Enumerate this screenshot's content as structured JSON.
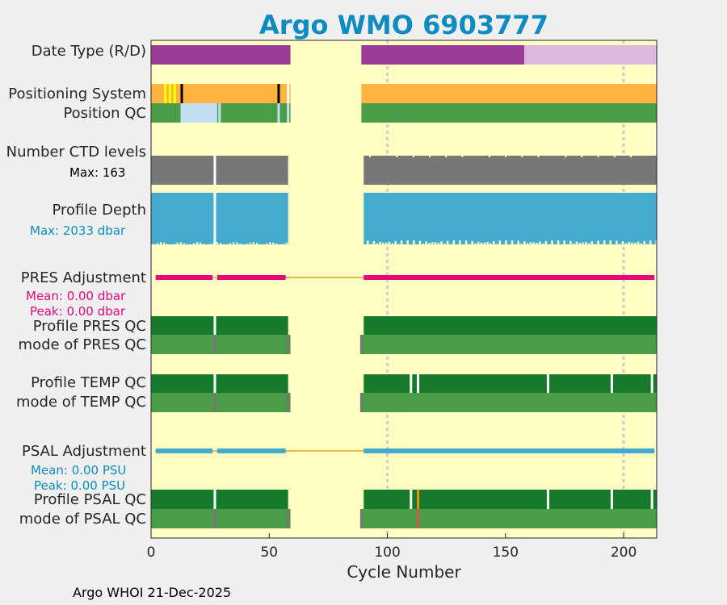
{
  "chart_data": {
    "type": "status-timeline",
    "title": "Argo WMO 6903777",
    "xlabel": "Cycle Number",
    "xlim": [
      0,
      214
    ],
    "xticks": [
      0,
      50,
      100,
      150,
      200
    ],
    "gridlines": [
      100,
      200
    ],
    "missing_cycles": [
      59,
      89
    ],
    "colors": {
      "background": "#ffffc4",
      "plot_border": "#000000",
      "purple_R": "#9b3d96",
      "pink_D": "#dcb8dc",
      "orange": "#ffb440",
      "yellow": "#ffff00",
      "black": "#000000",
      "good_qc": "#4a9d46",
      "light_blue": "#c0e0f0",
      "gray": "#777777",
      "depth_blue": "#44aace",
      "pres_line": "#e8077a",
      "psal_line": "#44aace",
      "thin_line": "#f3bb44",
      "profile_qc_green": "#167a2b",
      "gap_light": "#cccccc",
      "red": "#d9534f",
      "dark_orange": "#e3930c",
      "white": "#ffffff",
      "grid": "#cccccc"
    },
    "rows": [
      {
        "label": "Date Type (R/D)",
        "segments": [
          [
            0,
            59,
            "purple_R"
          ],
          [
            89,
            158,
            "purple_R"
          ],
          [
            158,
            214,
            "pink_D"
          ]
        ]
      },
      {
        "label": "Positioning System",
        "segments": [
          [
            0,
            59,
            "orange"
          ],
          [
            89,
            214,
            "orange"
          ]
        ],
        "marks": [
          [
            6,
            "yellow"
          ],
          [
            8,
            "yellow"
          ],
          [
            10,
            "yellow"
          ],
          [
            13,
            "black"
          ],
          [
            54,
            "black"
          ],
          [
            58,
            "white"
          ]
        ]
      },
      {
        "label": "Position QC",
        "segments": [
          [
            0,
            59,
            "good_qc"
          ],
          [
            89,
            214,
            "good_qc"
          ],
          [
            13,
            28,
            "light_blue"
          ]
        ],
        "marks": [
          [
            13,
            "light_blue"
          ],
          [
            29,
            "light_blue"
          ],
          [
            54,
            "light_blue"
          ],
          [
            58,
            "light_blue"
          ]
        ]
      },
      {
        "label": "Number CTD levels",
        "sublabel": "Max: 163",
        "segments": [
          [
            0,
            58,
            "gray"
          ],
          [
            90,
            214,
            "gray"
          ]
        ],
        "marks": [
          [
            27,
            "white"
          ]
        ]
      },
      {
        "label": "Profile Depth",
        "sublabel": "Max: 2033 dbar",
        "segments": [
          [
            0,
            58,
            "depth_blue"
          ],
          [
            90,
            214,
            "depth_blue"
          ]
        ],
        "marks": [
          [
            27,
            "white"
          ]
        ]
      },
      {
        "label": "PRES Adjustment",
        "sublabel": "Mean: 0.00 dbar",
        "sublabel2": "Peak: 0.00 dbar",
        "line": "thin_line",
        "segments": [
          [
            2,
            26,
            "pres_line"
          ],
          [
            28,
            57,
            "pres_line"
          ],
          [
            90,
            213,
            "pres_line"
          ]
        ]
      },
      {
        "label": "Profile PRES QC",
        "segments": [
          [
            0,
            58,
            "profile_qc_green"
          ],
          [
            90,
            214,
            "profile_qc_green"
          ]
        ],
        "marks": [
          [
            27,
            "white"
          ]
        ]
      },
      {
        "label": "mode of PRES QC",
        "segments": [
          [
            0,
            59,
            "good_qc"
          ],
          [
            89,
            214,
            "good_qc"
          ]
        ],
        "marks": [
          [
            27,
            "gray"
          ],
          [
            58,
            "gray"
          ],
          [
            89,
            "gray"
          ]
        ]
      },
      {
        "label": "Profile TEMP QC",
        "segments": [
          [
            0,
            58,
            "profile_qc_green"
          ],
          [
            90,
            214,
            "profile_qc_green"
          ]
        ],
        "marks": [
          [
            27,
            "white"
          ],
          [
            110,
            "white"
          ],
          [
            113,
            "white"
          ],
          [
            168,
            "white"
          ],
          [
            195,
            "white"
          ],
          [
            212,
            "white"
          ]
        ]
      },
      {
        "label": "mode of TEMP QC",
        "segments": [
          [
            0,
            59,
            "good_qc"
          ],
          [
            89,
            214,
            "good_qc"
          ]
        ],
        "marks": [
          [
            27,
            "gray"
          ],
          [
            58,
            "gray"
          ],
          [
            89,
            "gray"
          ]
        ]
      },
      {
        "label": "PSAL Adjustment",
        "sublabel": "Mean: 0.00 PSU",
        "sublabel2": "Peak: 0.00 PSU",
        "line": "thin_line",
        "segments": [
          [
            2,
            26,
            "psal_line"
          ],
          [
            28,
            57,
            "psal_line"
          ],
          [
            90,
            213,
            "psal_line"
          ]
        ]
      },
      {
        "label": "Profile PSAL QC",
        "segments": [
          [
            0,
            58,
            "profile_qc_green"
          ],
          [
            90,
            214,
            "profile_qc_green"
          ]
        ],
        "marks": [
          [
            27,
            "white"
          ],
          [
            110,
            "white"
          ],
          [
            113,
            "dark_orange"
          ],
          [
            168,
            "white"
          ],
          [
            195,
            "white"
          ],
          [
            212,
            "white"
          ]
        ]
      },
      {
        "label": "mode of PSAL QC",
        "segments": [
          [
            0,
            59,
            "good_qc"
          ],
          [
            89,
            214,
            "good_qc"
          ]
        ],
        "marks": [
          [
            27,
            "gray"
          ],
          [
            58,
            "gray"
          ],
          [
            89,
            "gray"
          ],
          [
            113,
            "red"
          ]
        ]
      }
    ]
  },
  "footer": "Argo WHOI 21-Dec-2025"
}
